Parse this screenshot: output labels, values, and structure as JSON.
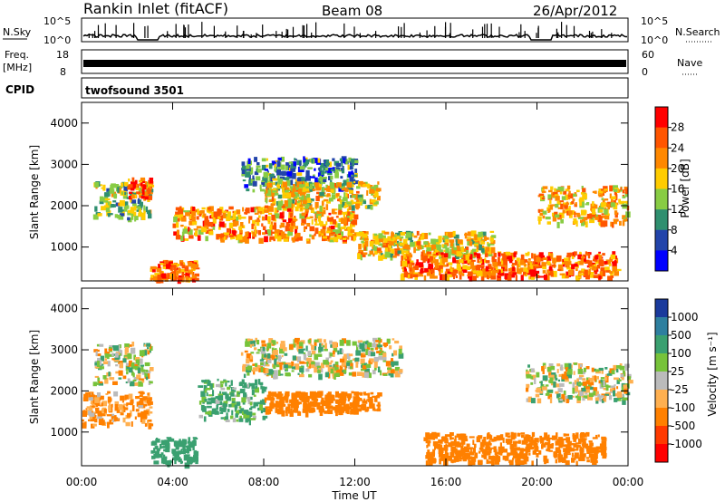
{
  "header": {
    "station": "Rankin Inlet (fitACF)",
    "beam": "Beam 08",
    "date": "26/Apr/2012"
  },
  "strip_labels": {
    "nsky": "N.Sky",
    "nsky_top": "10^5",
    "nsky_bottom": "10^0",
    "nsearch": "N.Search",
    "nsearch_top": "10^5",
    "nsearch_bottom": "10^0",
    "freq_line1": "Freq.",
    "freq_line2": "[MHz]",
    "freq_top": "18",
    "freq_bottom": "8",
    "nave": "Nave",
    "nave_top": "60",
    "nave_bottom": "0",
    "cpid": "CPID",
    "cpid_value": "twofsound 3501"
  },
  "colorscales": {
    "power": {
      "label": "Power [dB]",
      "ticks": [
        "28",
        "24",
        "20",
        "16",
        "12",
        "8",
        "4"
      ],
      "colors": [
        "#ff0000",
        "#ff5500",
        "#ff8800",
        "#ffcc00",
        "#88cc44",
        "#2f8f6f",
        "#2244aa",
        "#0000ff"
      ]
    },
    "velocity": {
      "label": "Velocity [m s⁻¹]",
      "ticks": [
        "1000",
        "500",
        "100",
        "25",
        "-25",
        "-100",
        "-500",
        "-1000"
      ],
      "colors": [
        "#1a3a9c",
        "#2e7f9f",
        "#3aa070",
        "#77c33a",
        "#bbbbbb",
        "#ffb050",
        "#ff8000",
        "#ff3a00",
        "#ff0000"
      ]
    }
  },
  "chart_data": [
    {
      "type": "heatmap",
      "panel": "power",
      "ylabel": "Slant Range [km]",
      "xlim": [
        "00:00",
        "24:00"
      ],
      "ylim": [
        180,
        4500
      ],
      "yticks": [
        "4000",
        "3000",
        "2000",
        "1000"
      ],
      "colorbar": "Power [dB]",
      "regions": [
        {
          "t": [
            0.5,
            3.0
          ],
          "r": [
            1700,
            2600
          ],
          "level": 14
        },
        {
          "t": [
            2.0,
            3.0
          ],
          "r": [
            2200,
            2700
          ],
          "level": 26
        },
        {
          "t": [
            3.0,
            5.0
          ],
          "r": [
            250,
            700
          ],
          "level": 24
        },
        {
          "t": [
            4.0,
            12.0
          ],
          "r": [
            1200,
            2000
          ],
          "level": 22
        },
        {
          "t": [
            7.0,
            12.0
          ],
          "r": [
            2400,
            3200
          ],
          "level": 10
        },
        {
          "t": [
            8.0,
            13.0
          ],
          "r": [
            2000,
            2600
          ],
          "level": 18
        },
        {
          "t": [
            12.0,
            18.0
          ],
          "r": [
            800,
            1400
          ],
          "level": 18
        },
        {
          "t": [
            14.0,
            23.5
          ],
          "r": [
            300,
            900
          ],
          "level": 24
        },
        {
          "t": [
            20.0,
            24.0
          ],
          "r": [
            1600,
            2500
          ],
          "level": 20
        }
      ]
    },
    {
      "type": "heatmap",
      "panel": "velocity",
      "ylabel": "Slant Range [km]",
      "xlabel": "Time UT",
      "xlim": [
        "00:00",
        "24:00"
      ],
      "ylim": [
        180,
        4500
      ],
      "yticks": [
        "4000",
        "3000",
        "2000",
        "1000"
      ],
      "xticks": [
        "00:00",
        "04:00",
        "08:00",
        "12:00",
        "16:00",
        "20:00",
        "00:00"
      ],
      "colorbar": "Velocity [m s⁻¹]",
      "regions": [
        {
          "t": [
            0.0,
            3.0
          ],
          "r": [
            1200,
            2000
          ],
          "level": -150
        },
        {
          "t": [
            0.5,
            3.0
          ],
          "r": [
            2200,
            3200
          ],
          "level": 0
        },
        {
          "t": [
            3.0,
            5.0
          ],
          "r": [
            250,
            900
          ],
          "level": 300
        },
        {
          "t": [
            5.0,
            8.0
          ],
          "r": [
            1300,
            2300
          ],
          "level": 150
        },
        {
          "t": [
            8.0,
            13.0
          ],
          "r": [
            1500,
            2000
          ],
          "level": -250
        },
        {
          "t": [
            7.0,
            14.0
          ],
          "r": [
            2400,
            3300
          ],
          "level": 0
        },
        {
          "t": [
            15.0,
            23.0
          ],
          "r": [
            300,
            1000
          ],
          "level": -300
        },
        {
          "t": [
            19.5,
            24.0
          ],
          "r": [
            1800,
            2700
          ],
          "level": 0
        }
      ]
    }
  ]
}
